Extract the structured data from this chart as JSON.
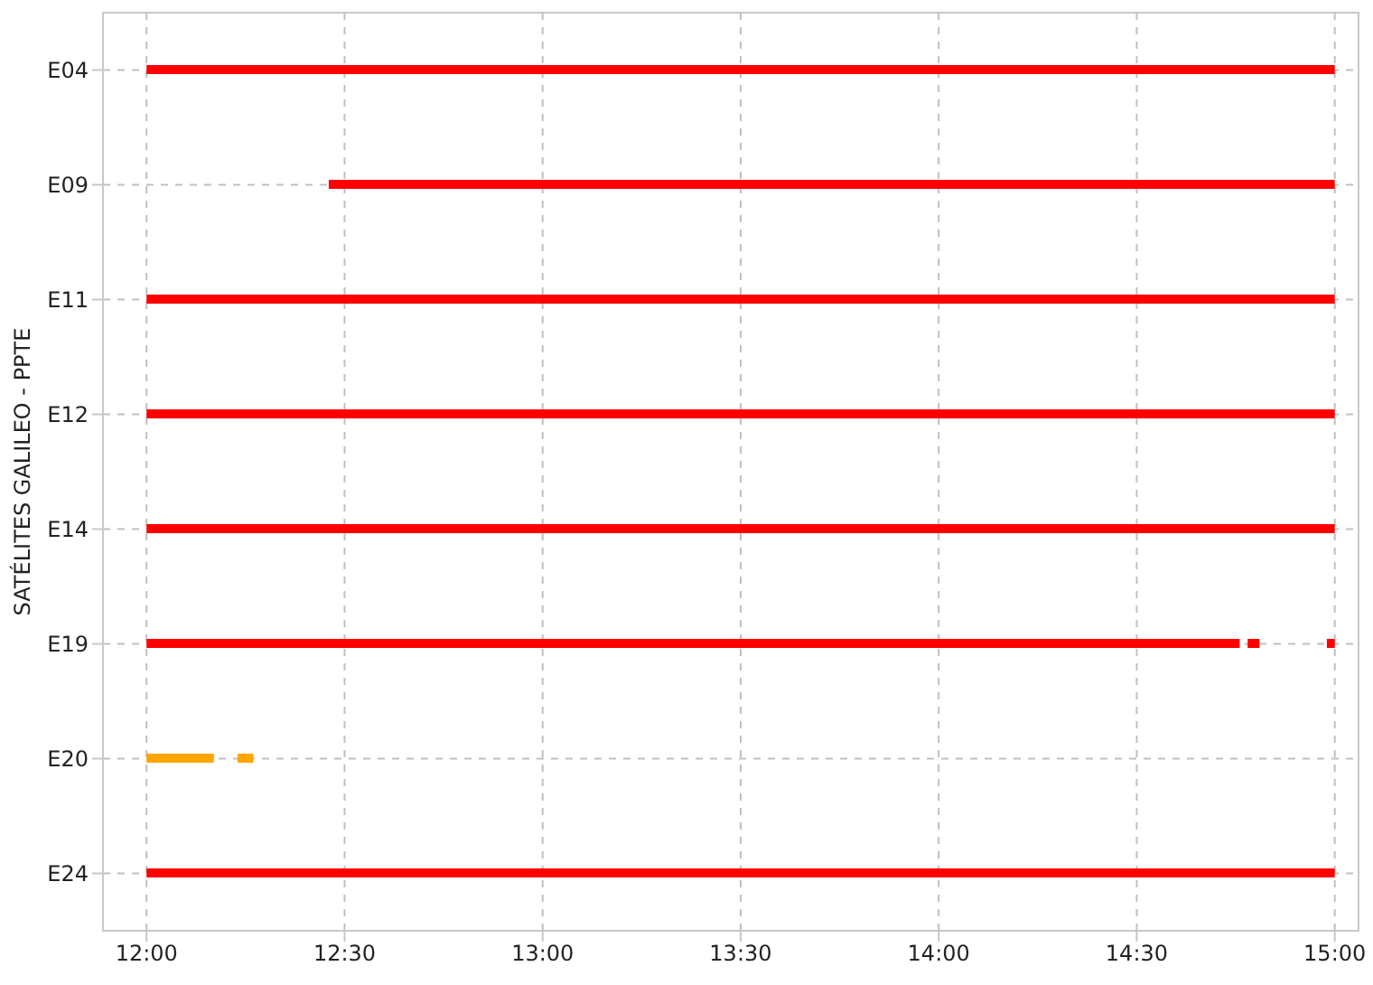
{
  "chart_data": {
    "type": "bar",
    "orientation": "horizontal",
    "ylabel": "SATÉLITES GALILEO - PPTE",
    "categories": [
      "E04",
      "E09",
      "E11",
      "E12",
      "E14",
      "E19",
      "E20",
      "E24"
    ],
    "series": [
      {
        "base": [
          12,
          12.46,
          12,
          12,
          12,
          12,
          12,
          12
        ],
        "values": [
          3,
          2.54,
          3,
          3,
          3,
          2.76,
          0.17,
          3
        ],
        "colors": [
          "#ff0000",
          "#ff0000",
          "#ff0000",
          "#ff0000",
          "#ff0000",
          "#ff0000",
          "#ffa500",
          "#ff0000"
        ]
      },
      {
        "base": [
          null,
          null,
          null,
          null,
          null,
          14.78,
          12.23,
          null
        ],
        "values": [
          null,
          null,
          null,
          null,
          null,
          0.03,
          0.04,
          null
        ],
        "colors": [
          "#ff0000",
          "#ff0000",
          "#ff0000",
          "#ff0000",
          "#ff0000",
          "#ff0000",
          "#ffa500",
          "#ff0000"
        ]
      },
      {
        "base": [
          null,
          null,
          null,
          null,
          null,
          14.98,
          null,
          null
        ],
        "values": [
          null,
          null,
          null,
          null,
          null,
          0.02,
          null,
          null
        ],
        "colors": [
          "#ff0000",
          "#ff0000",
          "#ff0000",
          "#ff0000",
          "#ff0000",
          "#ff0000",
          "#ffa500",
          "#ff0000"
        ]
      }
    ],
    "xlim": [
      11.89,
      15.06
    ],
    "xticks": [
      {
        "value": 12,
        "label": "12:00"
      },
      {
        "value": 12.5,
        "label": "12:30"
      },
      {
        "value": 13,
        "label": "13:00"
      },
      {
        "value": 13.5,
        "label": "13:30"
      },
      {
        "value": 14,
        "label": "14:00"
      },
      {
        "value": 14.5,
        "label": "14:30"
      },
      {
        "value": 15,
        "label": "15:00"
      }
    ],
    "grid": true,
    "legend": false
  }
}
